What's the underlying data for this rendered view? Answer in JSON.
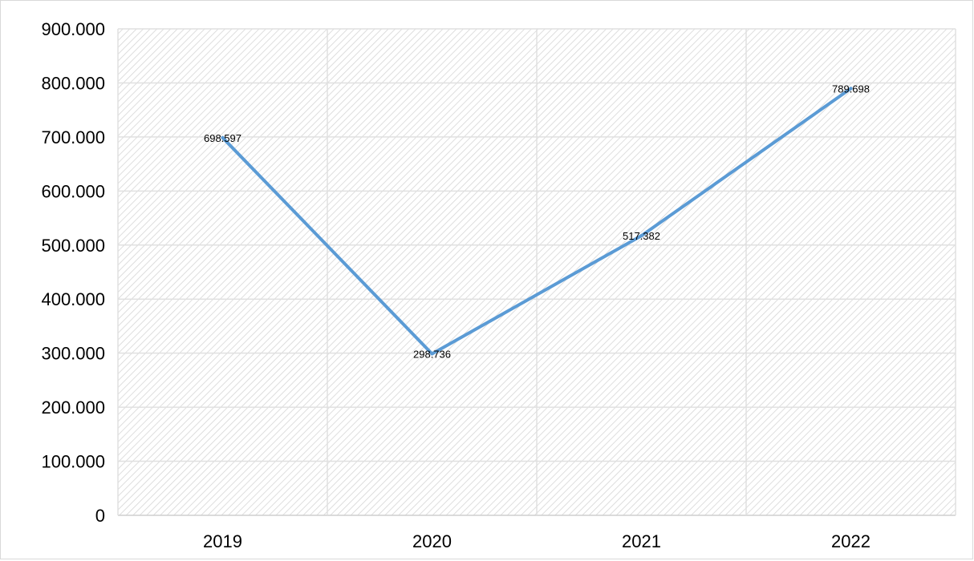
{
  "chart_data": {
    "type": "line",
    "categories": [
      "2019",
      "2020",
      "2021",
      "2022"
    ],
    "series": [
      {
        "values": [
          698597,
          298736,
          517382,
          789698
        ],
        "labels": [
          "698.597",
          "298.736",
          "517.382",
          "789.698"
        ],
        "color": "#5b9bd5"
      }
    ],
    "y_ticks": [
      "0",
      "100.000",
      "200.000",
      "300.000",
      "400.000",
      "500.000",
      "600.000",
      "700.000",
      "800.000",
      "900.000"
    ],
    "ylim": [
      0,
      900000
    ],
    "title": "",
    "xlabel": "",
    "ylabel": "",
    "grid": true,
    "plot_background": "diagonal-hatch",
    "grid_color": "#e0e0e0",
    "hatch_color": "#d6d6d6"
  }
}
